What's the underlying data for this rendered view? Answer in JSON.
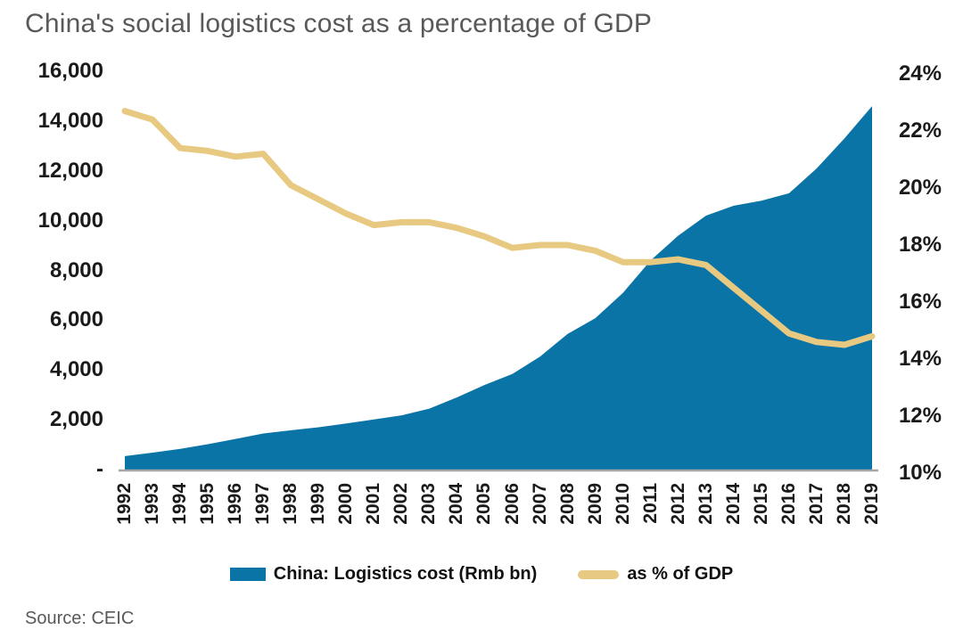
{
  "title": "China's social logistics cost as a percentage of GDP",
  "source": "Source: CEIC",
  "colors": {
    "area": "#0B74A6",
    "line": "#E8C981",
    "muted_text": "#595959",
    "axis_text": "#1A1A1A",
    "baseline": "#A6A6A6"
  },
  "left_axis": {
    "tick_labels": [
      "16,000",
      "14,000",
      "12,000",
      "10,000",
      "8,000",
      "6,000",
      "4,000",
      "2,000",
      "-"
    ],
    "min": 0,
    "max": 16000
  },
  "right_axis": {
    "tick_labels": [
      "24%",
      "22%",
      "20%",
      "18%",
      "16%",
      "14%",
      "12%",
      "10%"
    ],
    "min": 10,
    "max": 24
  },
  "legend": {
    "items": [
      {
        "label": "China: Logistics cost (Rmb bn)",
        "type": "area"
      },
      {
        "label": "as % of GDP",
        "type": "line"
      }
    ]
  },
  "chart_data": {
    "type": "area+line",
    "x": [
      1992,
      1993,
      1994,
      1995,
      1996,
      1997,
      1998,
      1999,
      2000,
      2001,
      2002,
      2003,
      2004,
      2005,
      2006,
      2007,
      2008,
      2009,
      2010,
      2011,
      2012,
      2013,
      2014,
      2015,
      2016,
      2017,
      2018,
      2019
    ],
    "series": [
      {
        "name": "China: Logistics cost (Rmb bn)",
        "type": "area",
        "axis": "left",
        "values": [
          540,
          680,
          830,
          1020,
          1230,
          1450,
          1580,
          1700,
          1850,
          2010,
          2180,
          2450,
          2900,
          3400,
          3840,
          4540,
          5450,
          6080,
          7100,
          8400,
          9400,
          10200,
          10600,
          10800,
          11100,
          12100,
          13300,
          14600
        ]
      },
      {
        "name": "as % of GDP",
        "type": "line",
        "axis": "right",
        "values": [
          22.7,
          22.4,
          21.4,
          21.3,
          21.1,
          21.2,
          20.1,
          19.6,
          19.1,
          18.7,
          18.8,
          18.8,
          18.6,
          18.3,
          17.9,
          18.0,
          18.0,
          17.8,
          17.4,
          17.4,
          17.5,
          17.3,
          16.5,
          15.7,
          14.9,
          14.6,
          14.5,
          14.8
        ]
      }
    ],
    "left_ylim": [
      0,
      16000
    ],
    "right_ylim": [
      10,
      24
    ],
    "grid": false,
    "legend_position": "bottom"
  }
}
